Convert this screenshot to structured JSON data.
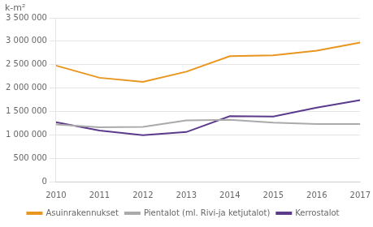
{
  "chart_data": {
    "type": "line",
    "ylabel": "k-m²",
    "x": [
      2010,
      2011,
      2012,
      2013,
      2014,
      2015,
      2016,
      2017
    ],
    "series": [
      {
        "name": "Asuinrakennukset",
        "color": "#E8961E",
        "values": [
          2480000,
          2220000,
          2130000,
          2350000,
          2680000,
          2700000,
          2800000,
          2970000
        ]
      },
      {
        "name": "Pientalot (ml. Rivi-ja ketjutalot)",
        "color": "#AAAAAA",
        "values": [
          1220000,
          1160000,
          1170000,
          1310000,
          1320000,
          1260000,
          1230000,
          1230000
        ]
      },
      {
        "name": "Kerrostalot",
        "color": "#5B3A8C",
        "values": [
          1270000,
          1090000,
          990000,
          1060000,
          1400000,
          1390000,
          1580000,
          1740000
        ]
      }
    ],
    "xlim": [
      2010,
      2017
    ],
    "xticks": [
      2010,
      2011,
      2012,
      2013,
      2014,
      2015,
      2016,
      2017
    ],
    "ylim": [
      0,
      3500000
    ],
    "yticks": [
      0,
      {
        "value": 500000,
        "label": "500 000"
      },
      {
        "value": 1000000,
        "label": "1 000 000"
      },
      {
        "value": 1500000,
        "label": "1 500 000"
      },
      {
        "value": 2000000,
        "label": "2 000 000"
      },
      {
        "value": 2500000,
        "label": "2 500 000"
      },
      {
        "value": 3000000,
        "label": "3 000 000"
      },
      {
        "value": 3500000,
        "label": "3 500 000"
      }
    ],
    "grid": "y",
    "legend": "bottom"
  }
}
